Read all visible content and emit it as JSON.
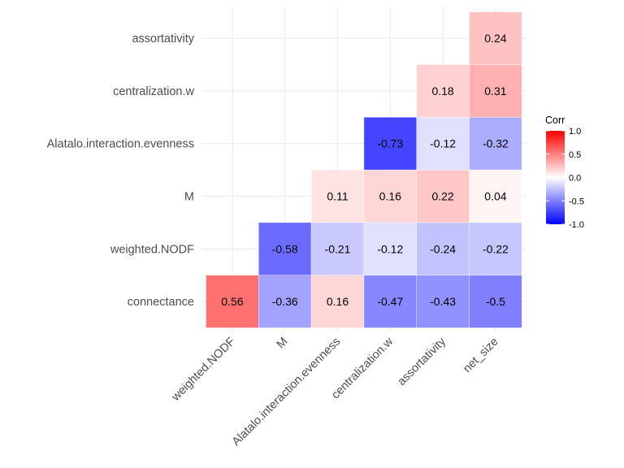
{
  "chart_data": {
    "type": "heatmap",
    "x_categories": [
      "weighted.NODF",
      "M",
      "Alatalo.interaction.evenness",
      "centralization.w",
      "assortativity",
      "net_size"
    ],
    "y_categories": [
      "connectance",
      "weighted.NODF",
      "M",
      "Alatalo.interaction.evenness",
      "centralization.w",
      "assortativity"
    ],
    "cells": [
      {
        "row": "connectance",
        "col": "weighted.NODF",
        "value": 0.56
      },
      {
        "row": "connectance",
        "col": "M",
        "value": -0.36
      },
      {
        "row": "connectance",
        "col": "Alatalo.interaction.evenness",
        "value": 0.16
      },
      {
        "row": "connectance",
        "col": "centralization.w",
        "value": -0.47
      },
      {
        "row": "connectance",
        "col": "assortativity",
        "value": -0.43
      },
      {
        "row": "connectance",
        "col": "net_size",
        "value": -0.5
      },
      {
        "row": "weighted.NODF",
        "col": "M",
        "value": -0.58
      },
      {
        "row": "weighted.NODF",
        "col": "Alatalo.interaction.evenness",
        "value": -0.21
      },
      {
        "row": "weighted.NODF",
        "col": "centralization.w",
        "value": -0.12
      },
      {
        "row": "weighted.NODF",
        "col": "assortativity",
        "value": -0.24
      },
      {
        "row": "weighted.NODF",
        "col": "net_size",
        "value": -0.22
      },
      {
        "row": "M",
        "col": "Alatalo.interaction.evenness",
        "value": 0.11
      },
      {
        "row": "M",
        "col": "centralization.w",
        "value": 0.16
      },
      {
        "row": "M",
        "col": "assortativity",
        "value": 0.22
      },
      {
        "row": "M",
        "col": "net_size",
        "value": 0.04
      },
      {
        "row": "Alatalo.interaction.evenness",
        "col": "centralization.w",
        "value": -0.73
      },
      {
        "row": "Alatalo.interaction.evenness",
        "col": "assortativity",
        "value": -0.12
      },
      {
        "row": "Alatalo.interaction.evenness",
        "col": "net_size",
        "value": -0.32
      },
      {
        "row": "centralization.w",
        "col": "assortativity",
        "value": 0.18
      },
      {
        "row": "centralization.w",
        "col": "net_size",
        "value": 0.31
      },
      {
        "row": "assortativity",
        "col": "net_size",
        "value": 0.24
      }
    ],
    "legend": {
      "title": "Corr",
      "ticks": [
        1.0,
        0.5,
        0.0,
        -0.5,
        -1.0
      ],
      "tick_labels": [
        "1.0",
        "0.5",
        "0.0",
        "-0.5",
        "-1.0"
      ],
      "placement": "right"
    },
    "colors": {
      "low": "#0000ff",
      "mid": "#ffffff",
      "high": "#ff0000"
    },
    "value_range": [
      -1,
      1
    ],
    "grid": true
  }
}
